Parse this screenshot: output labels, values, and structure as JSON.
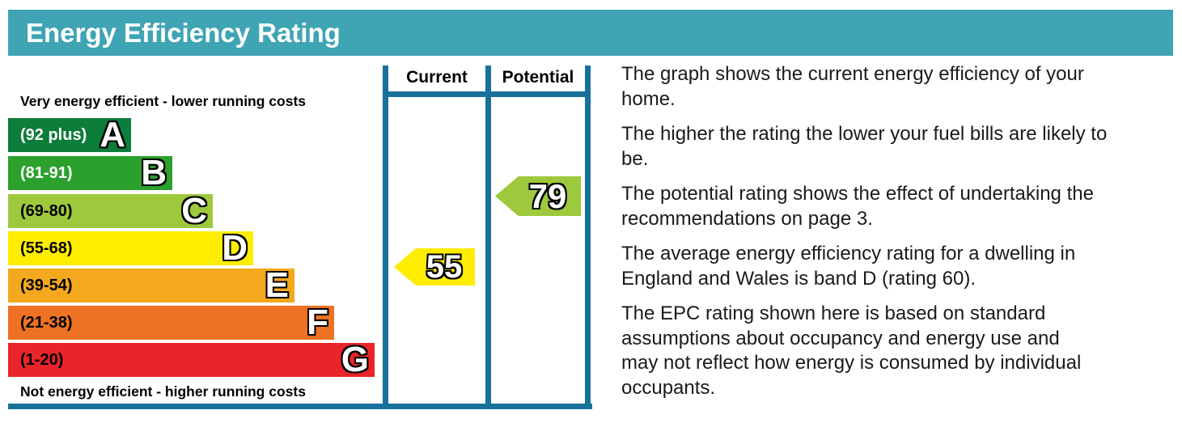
{
  "header": {
    "title": "Energy Efficiency Rating"
  },
  "colors": {
    "header_bg": "#3fa4b3",
    "border": "#18719a"
  },
  "chart": {
    "top_note": "Very energy efficient - lower running costs",
    "bottom_note": "Not energy efficient - higher running costs",
    "columns": {
      "current": "Current",
      "potential": "Potential"
    },
    "bands": [
      {
        "letter": "A",
        "range": "(92 plus)",
        "color": "#0c7d3b",
        "range_text_color": "#ffffff"
      },
      {
        "letter": "B",
        "range": "(81-91)",
        "color": "#2ca02c",
        "range_text_color": "#ffffff"
      },
      {
        "letter": "C",
        "range": "(69-80)",
        "color": "#9ec93d",
        "range_text_color": "#000000"
      },
      {
        "letter": "D",
        "range": "(55-68)",
        "color": "#ffed00",
        "range_text_color": "#000000"
      },
      {
        "letter": "E",
        "range": "(39-54)",
        "color": "#f3a81d",
        "range_text_color": "#000000"
      },
      {
        "letter": "F",
        "range": "(21-38)",
        "color": "#ee7223",
        "range_text_color": "#000000"
      },
      {
        "letter": "G",
        "range": "(1-20)",
        "color": "#e9242a",
        "range_text_color": "#000000"
      }
    ],
    "current_rating": {
      "value": "55",
      "band": "D",
      "color": "#ffed00"
    },
    "potential_rating": {
      "value": "79",
      "band": "C",
      "color": "#9ec93d"
    }
  },
  "chart_data": {
    "type": "bar",
    "title": "Energy Efficiency Rating",
    "categories": [
      "A",
      "B",
      "C",
      "D",
      "E",
      "F",
      "G"
    ],
    "band_ranges": [
      "92 plus",
      "81-91",
      "69-80",
      "55-68",
      "39-54",
      "21-38",
      "1-20"
    ],
    "band_colors": [
      "#0c7d3b",
      "#2ca02c",
      "#9ec93d",
      "#ffed00",
      "#f3a81d",
      "#ee7223",
      "#e9242a"
    ],
    "bar_widths_relative": [
      152,
      203,
      253,
      303,
      354,
      403,
      453
    ],
    "current": 55,
    "potential": 79,
    "current_band": "D",
    "potential_band": "C",
    "legend_position": "columns-right",
    "axis_top_label": "Very energy efficient - lower running costs",
    "axis_bottom_label": "Not energy efficient - higher running costs"
  },
  "description": {
    "paragraphs": [
      "The graph shows the current energy efficiency of your\nhome.",
      "The higher the rating the lower your fuel bills are likely to\nbe.",
      "The potential rating shows the effect of undertaking the\nrecommendations on page 3.",
      "The average energy efficiency rating for a dwelling in\nEngland and Wales is band D (rating 60).",
      "The EPC rating shown here is based on standard\nassumptions about occupancy and energy use and\nmay not reflect how energy is consumed by individual\noccupants."
    ]
  }
}
